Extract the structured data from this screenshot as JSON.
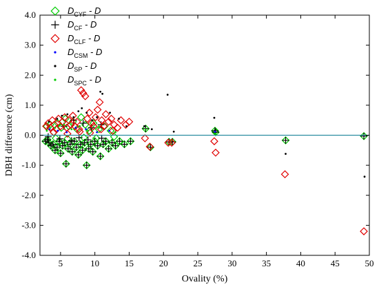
{
  "chart_data": {
    "type": "scatter",
    "title": "",
    "xlabel": "Ovality (%)",
    "ylabel": "DBH difference (cm)",
    "xlim": [
      2,
      50
    ],
    "ylim": [
      -4,
      4
    ],
    "x_ticks": [
      5,
      10,
      15,
      20,
      25,
      30,
      35,
      40,
      45,
      50
    ],
    "y_ticks": [
      -4,
      -3,
      -2,
      -1,
      0,
      1,
      2,
      3,
      4
    ],
    "y_tick_labels": [
      "-4.0",
      "-3.0",
      "-2.0",
      "-1.0",
      "0.0",
      "1.0",
      "2.0",
      "3.0",
      "4.0"
    ],
    "reference_line": {
      "y": 0,
      "color": "#2a8ca0"
    },
    "grid": false,
    "legend_position": "top-left",
    "series": [
      {
        "legend_main": "D",
        "legend_sub": "CYF",
        "legend_tail": " - D",
        "marker": "diamond-open",
        "color": "#00cc00",
        "points": [
          [
            2.8,
            -0.2
          ],
          [
            3.1,
            -0.15
          ],
          [
            3.3,
            -0.25
          ],
          [
            3.6,
            -0.35
          ],
          [
            3.9,
            -0.3
          ],
          [
            4.2,
            -0.5
          ],
          [
            4.5,
            -0.4
          ],
          [
            4.8,
            -0.2
          ],
          [
            5.0,
            -0.6
          ],
          [
            5.3,
            -0.35
          ],
          [
            5.6,
            -0.25
          ],
          [
            5.8,
            -0.95
          ],
          [
            6.1,
            -0.45
          ],
          [
            6.4,
            -0.3
          ],
          [
            6.7,
            -0.55
          ],
          [
            7.0,
            -0.2
          ],
          [
            7.3,
            -0.4
          ],
          [
            7.6,
            -0.65
          ],
          [
            7.9,
            -0.3
          ],
          [
            8.2,
            -0.5
          ],
          [
            8.5,
            -0.25
          ],
          [
            8.8,
            -1.0
          ],
          [
            9.1,
            -0.45
          ],
          [
            9.4,
            -0.3
          ],
          [
            9.7,
            -0.55
          ],
          [
            10.0,
            -0.2
          ],
          [
            10.4,
            -0.35
          ],
          [
            10.8,
            -0.7
          ],
          [
            11.2,
            -0.3
          ],
          [
            11.6,
            -0.2
          ],
          [
            12.0,
            -0.45
          ],
          [
            12.5,
            -0.25
          ],
          [
            13.0,
            -0.35
          ],
          [
            13.6,
            -0.2
          ],
          [
            14.3,
            -0.3
          ],
          [
            15.2,
            -0.2
          ],
          [
            17.4,
            0.22
          ],
          [
            18.1,
            -0.4
          ],
          [
            20.8,
            -0.22
          ],
          [
            21.3,
            -0.22
          ],
          [
            27.5,
            0.15
          ],
          [
            27.6,
            0.1
          ],
          [
            37.8,
            -0.17
          ],
          [
            49.2,
            -0.03
          ],
          [
            3.0,
            0.3
          ],
          [
            3.5,
            0.35
          ],
          [
            4.0,
            0.1
          ],
          [
            4.6,
            0.4
          ],
          [
            5.1,
            0.25
          ],
          [
            5.7,
            0.55
          ],
          [
            6.2,
            0.3
          ],
          [
            6.8,
            0.45
          ],
          [
            7.4,
            0.2
          ],
          [
            8.0,
            0.6
          ],
          [
            8.6,
            0.35
          ],
          [
            9.2,
            0.15
          ],
          [
            9.8,
            0.4
          ],
          [
            10.6,
            0.2
          ],
          [
            11.4,
            0.3
          ],
          [
            12.3,
            0.15
          ],
          [
            4.3,
            -0.1
          ],
          [
            6.0,
            -0.12
          ],
          [
            8.4,
            -0.08
          ],
          [
            10.2,
            -0.1
          ],
          [
            12.8,
            -0.05
          ]
        ]
      },
      {
        "legend_main": "D",
        "legend_sub": "CF",
        "legend_tail": " - D",
        "marker": "plus",
        "color": "#000000",
        "points": [
          [
            2.8,
            -0.2
          ],
          [
            3.1,
            -0.15
          ],
          [
            3.3,
            -0.25
          ],
          [
            3.6,
            -0.35
          ],
          [
            3.9,
            -0.3
          ],
          [
            4.2,
            -0.5
          ],
          [
            4.5,
            -0.4
          ],
          [
            4.8,
            -0.2
          ],
          [
            5.0,
            -0.6
          ],
          [
            5.3,
            -0.35
          ],
          [
            5.6,
            -0.25
          ],
          [
            5.8,
            -0.95
          ],
          [
            6.1,
            -0.45
          ],
          [
            6.4,
            -0.3
          ],
          [
            6.7,
            -0.55
          ],
          [
            7.0,
            -0.2
          ],
          [
            7.3,
            -0.4
          ],
          [
            7.6,
            -0.65
          ],
          [
            7.9,
            -0.3
          ],
          [
            8.2,
            -0.5
          ],
          [
            8.5,
            -0.25
          ],
          [
            8.8,
            -1.0
          ],
          [
            9.1,
            -0.45
          ],
          [
            9.4,
            -0.3
          ],
          [
            9.7,
            -0.55
          ],
          [
            10.0,
            -0.2
          ],
          [
            10.4,
            -0.35
          ],
          [
            10.8,
            -0.7
          ],
          [
            11.2,
            -0.3
          ],
          [
            11.6,
            -0.2
          ],
          [
            12.0,
            -0.45
          ],
          [
            12.5,
            -0.25
          ],
          [
            13.0,
            -0.35
          ],
          [
            13.6,
            -0.2
          ],
          [
            14.3,
            -0.3
          ],
          [
            15.2,
            -0.2
          ],
          [
            17.4,
            0.22
          ],
          [
            18.1,
            -0.4
          ],
          [
            20.8,
            -0.22
          ],
          [
            21.3,
            -0.22
          ],
          [
            27.5,
            0.15
          ],
          [
            27.6,
            0.1
          ],
          [
            37.8,
            -0.17
          ],
          [
            49.2,
            -0.03
          ],
          [
            3.2,
            -0.05
          ],
          [
            4.9,
            -0.12
          ],
          [
            6.6,
            -0.18
          ],
          [
            7.7,
            -0.08
          ],
          [
            9.0,
            -0.15
          ],
          [
            11.0,
            -0.1
          ],
          [
            5.5,
            0.3
          ],
          [
            6.9,
            0.5
          ],
          [
            8.3,
            0.4
          ],
          [
            9.5,
            0.25
          ],
          [
            10.9,
            0.35
          ]
        ]
      },
      {
        "legend_main": "D",
        "legend_sub": "CLF",
        "legend_tail": " - D",
        "marker": "diamond-open",
        "color": "#e00000",
        "points": [
          [
            2.9,
            0.3
          ],
          [
            3.2,
            0.4
          ],
          [
            3.5,
            0.25
          ],
          [
            3.8,
            0.5
          ],
          [
            4.1,
            0.35
          ],
          [
            4.4,
            0.2
          ],
          [
            4.7,
            0.55
          ],
          [
            5.0,
            0.3
          ],
          [
            5.3,
            0.45
          ],
          [
            5.6,
            0.6
          ],
          [
            5.9,
            0.25
          ],
          [
            6.2,
            0.5
          ],
          [
            6.5,
            0.35
          ],
          [
            6.8,
            0.65
          ],
          [
            7.1,
            0.3
          ],
          [
            7.4,
            0.45
          ],
          [
            7.7,
            0.2
          ],
          [
            8.0,
            1.5
          ],
          [
            8.3,
            1.4
          ],
          [
            8.6,
            1.3
          ],
          [
            8.9,
            0.55
          ],
          [
            9.2,
            0.75
          ],
          [
            9.5,
            0.4
          ],
          [
            9.8,
            0.3
          ],
          [
            10.1,
            0.6
          ],
          [
            10.4,
            0.85
          ],
          [
            10.7,
            1.1
          ],
          [
            11.0,
            0.5
          ],
          [
            11.3,
            0.3
          ],
          [
            11.6,
            0.7
          ],
          [
            12.0,
            0.45
          ],
          [
            12.4,
            0.55
          ],
          [
            12.8,
            0.35
          ],
          [
            13.3,
            0.25
          ],
          [
            13.8,
            0.5
          ],
          [
            14.5,
            0.35
          ],
          [
            15.0,
            0.45
          ],
          [
            17.3,
            -0.1
          ],
          [
            18.0,
            -0.38
          ],
          [
            20.7,
            -0.25
          ],
          [
            21.2,
            -0.25
          ],
          [
            27.4,
            -0.2
          ],
          [
            27.6,
            -0.58
          ],
          [
            37.7,
            -1.3
          ],
          [
            49.2,
            -3.2
          ],
          [
            4.0,
            0.1
          ],
          [
            6.0,
            0.05
          ],
          [
            7.8,
            0.12
          ],
          [
            9.3,
            0.08
          ],
          [
            10.9,
            0.2
          ],
          [
            12.6,
            0.15
          ]
        ]
      },
      {
        "legend_main": "D",
        "legend_sub": "CSM",
        "legend_tail": " - D",
        "marker": "dot",
        "color": "#0000ff",
        "points": [
          [
            3.4,
            0.2
          ],
          [
            4.6,
            0.15
          ],
          [
            5.9,
            0.1
          ],
          [
            7.2,
            0.25
          ],
          [
            8.7,
            0.2
          ],
          [
            10.3,
            0.1
          ],
          [
            12.1,
            0.15
          ],
          [
            27.5,
            0.12
          ]
        ]
      },
      {
        "legend_main": "D",
        "legend_sub": "SP",
        "legend_tail": " - D",
        "marker": "dot",
        "color": "#000000",
        "points": [
          [
            3.3,
            0.45
          ],
          [
            4.5,
            0.55
          ],
          [
            5.2,
            0.65
          ],
          [
            6.0,
            0.7
          ],
          [
            6.9,
            0.6
          ],
          [
            7.6,
            0.8
          ],
          [
            8.1,
            0.9
          ],
          [
            8.8,
            0.75
          ],
          [
            9.6,
            0.5
          ],
          [
            10.3,
            0.6
          ],
          [
            10.8,
            1.45
          ],
          [
            11.1,
            1.38
          ],
          [
            12.2,
            0.75
          ],
          [
            13.5,
            0.55
          ],
          [
            14.6,
            0.3
          ],
          [
            17.2,
            0.3
          ],
          [
            18.3,
            0.2
          ],
          [
            20.6,
            1.35
          ],
          [
            21.5,
            0.12
          ],
          [
            27.4,
            0.58
          ],
          [
            37.8,
            -0.62
          ],
          [
            49.3,
            -1.38
          ]
        ]
      },
      {
        "legend_main": "D",
        "legend_sub": "SPC",
        "legend_tail": " - D",
        "marker": "dot",
        "color": "#00cc00",
        "points": [
          [
            3.0,
            0.15
          ],
          [
            4.2,
            0.25
          ],
          [
            5.5,
            0.35
          ],
          [
            6.6,
            0.2
          ],
          [
            7.8,
            0.3
          ],
          [
            9.0,
            0.15
          ],
          [
            10.6,
            0.25
          ],
          [
            13.0,
            0.1
          ],
          [
            17.4,
            0.2
          ],
          [
            27.6,
            0.05
          ]
        ]
      }
    ]
  }
}
